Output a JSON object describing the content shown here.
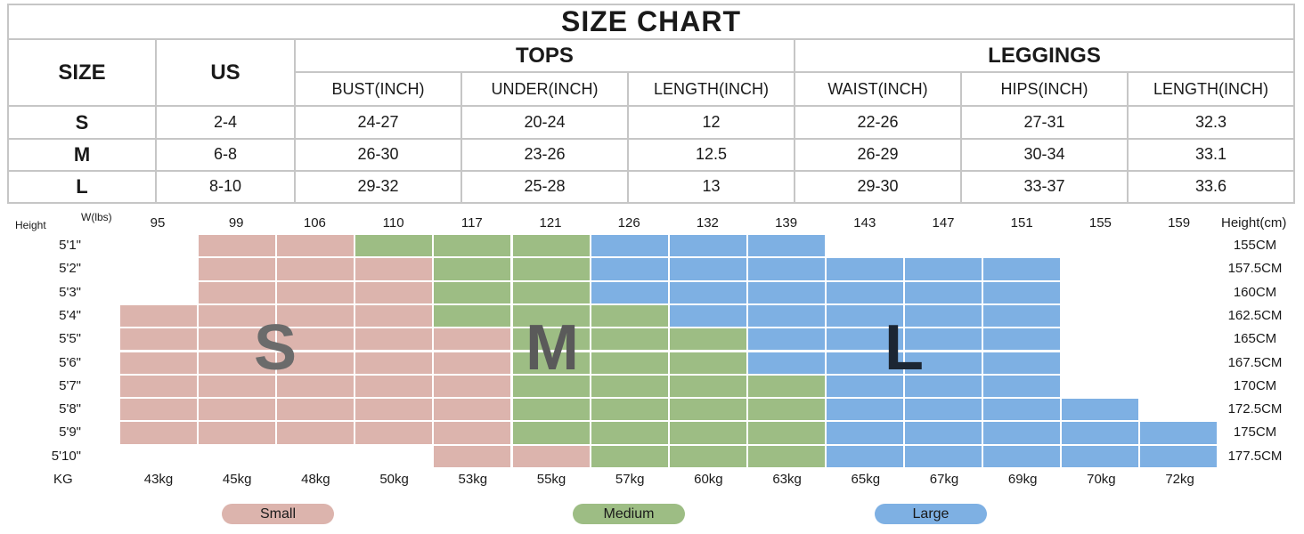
{
  "table": {
    "title": "SIZE CHART",
    "size_header": "SIZE",
    "us_header": "US",
    "tops_header": "TOPS",
    "leggings_header": "LEGGINGS",
    "columns": [
      "BUST(INCH)",
      "UNDER(INCH)",
      "LENGTH(INCH)",
      "WAIST(INCH)",
      "HIPS(INCH)",
      "LENGTH(INCH)"
    ],
    "rows": [
      {
        "size": "S",
        "us": "2-4",
        "values": [
          "24-27",
          "20-24",
          "12",
          "22-26",
          "27-31",
          "32.3"
        ]
      },
      {
        "size": "M",
        "us": "6-8",
        "values": [
          "26-30",
          "23-26",
          "12.5",
          "26-29",
          "30-34",
          "33.1"
        ]
      },
      {
        "size": "L",
        "us": "8-10",
        "values": [
          "29-32",
          "25-28",
          "13",
          "29-30",
          "33-37",
          "33.6"
        ]
      }
    ]
  },
  "grid": {
    "height_label": "Height",
    "weight_label": "W(lbs)",
    "height_cm_label": "Height(cm)",
    "kg_label": "KG",
    "lbs": [
      "95",
      "99",
      "106",
      "110",
      "117",
      "121",
      "126",
      "132",
      "139",
      "143",
      "147",
      "151",
      "155",
      "159"
    ],
    "kg": [
      "43kg",
      "45kg",
      "48kg",
      "50kg",
      "53kg",
      "55kg",
      "57kg",
      "60kg",
      "63kg",
      "65kg",
      "67kg",
      "69kg",
      "70kg",
      "72kg"
    ],
    "heights_ft": [
      "5'1\"",
      "5'2\"",
      "5'3\"",
      "5'4\"",
      "5'5\"",
      "5'6\"",
      "5'7\"",
      "5'8\"",
      "5'9\"",
      "5'10\""
    ],
    "heights_cm": [
      "155CM",
      "157.5CM",
      "160CM",
      "162.5CM",
      "165CM",
      "167.5CM",
      "170CM",
      "172.5CM",
      "175CM",
      "177.5CM"
    ],
    "cells": [
      "-SSMMMLLL-----",
      "-SSSMMLLLLLL--",
      "-SSSMMLLLLLL--",
      "SSSSMMMLLLLL--",
      "SSSSSMMMLLLL--",
      "SSSSSMMMLLLL--",
      "SSSSSMMMMLLL--",
      "SSSSSMMMMLLLL-",
      "SSSSSMMMMLLLLL",
      "----SSMMMLLLLL"
    ],
    "big_labels": {
      "small": "S",
      "medium": "M",
      "large": "L"
    }
  },
  "legend": {
    "small": "Small",
    "medium": "Medium",
    "large": "Large"
  },
  "colors": {
    "small": "#dcb4ad",
    "medium": "#9dbd84",
    "large": "#7eb0e3",
    "small_letter": "#6b6b6b",
    "medium_letter": "#5a5a5a",
    "large_letter": "#1c2633",
    "border": "#c6c6c6"
  }
}
